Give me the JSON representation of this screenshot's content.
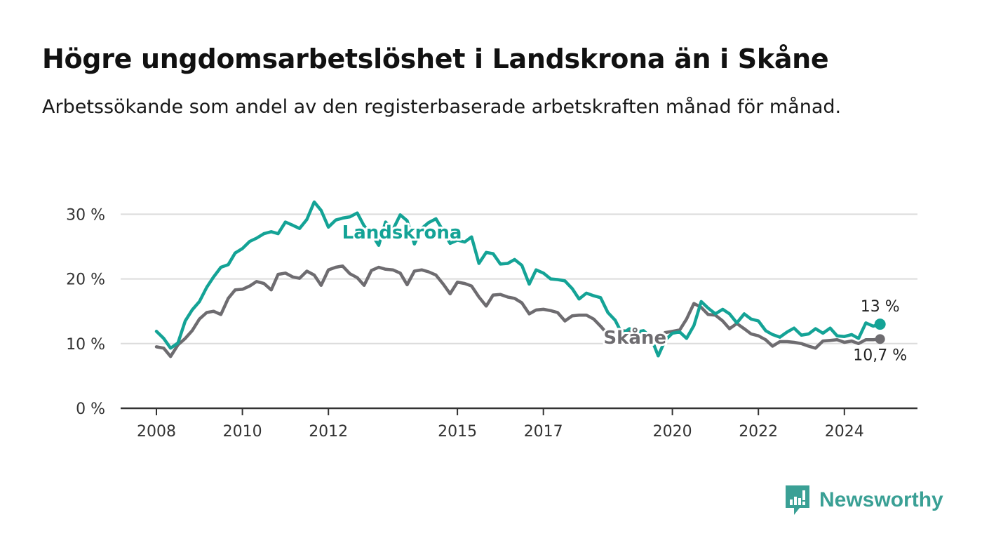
{
  "title": "Högre ungdomsarbetslöshet i Landskrona än i Skåne",
  "subtitle": "Arbetssökande som andel av den registerbaserade arbetskraften månad för månad.",
  "brand": {
    "name": "Newsworthy",
    "icon": "bar-chart-speech-bubble-icon",
    "color": "#3aa095"
  },
  "chart_data": {
    "type": "line",
    "title": "Högre ungdomsarbetslöshet i Landskrona än i Skåne",
    "subtitle": "Arbetssökande som andel av den registerbaserade arbetskraften månad för månad.",
    "xlabel": "",
    "ylabel": "",
    "xlim": [
      2008.0,
      2025.5
    ],
    "ylim": [
      0,
      30
    ],
    "y_ticks": [
      0,
      10,
      20,
      30
    ],
    "y_tick_labels": [
      "0 %",
      "10 %",
      "20 %",
      "30 %"
    ],
    "x_ticks": [
      2008,
      2010,
      2012,
      2015,
      2017,
      2020,
      2022,
      2024
    ],
    "x_tick_labels": [
      "2008",
      "2010",
      "2012",
      "2015",
      "2017",
      "2020",
      "2022",
      "2024"
    ],
    "grid": true,
    "series": [
      {
        "name": "Landskrona",
        "color": "#14a396",
        "end_label": "13 %",
        "points": [
          [
            2008.0,
            11.9
          ],
          [
            2008.17,
            10.8
          ],
          [
            2008.33,
            9.3
          ],
          [
            2008.5,
            10.1
          ],
          [
            2008.67,
            13.5
          ],
          [
            2008.83,
            15.2
          ],
          [
            2009.0,
            16.5
          ],
          [
            2009.17,
            18.7
          ],
          [
            2009.33,
            20.3
          ],
          [
            2009.5,
            21.8
          ],
          [
            2009.67,
            22.2
          ],
          [
            2009.83,
            24.0
          ],
          [
            2010.0,
            24.7
          ],
          [
            2010.17,
            25.8
          ],
          [
            2010.33,
            26.3
          ],
          [
            2010.5,
            27.0
          ],
          [
            2010.67,
            27.3
          ],
          [
            2010.83,
            27.0
          ],
          [
            2011.0,
            28.8
          ],
          [
            2011.17,
            28.3
          ],
          [
            2011.33,
            27.8
          ],
          [
            2011.5,
            29.2
          ],
          [
            2011.67,
            31.9
          ],
          [
            2011.83,
            30.6
          ],
          [
            2012.0,
            28.0
          ],
          [
            2012.17,
            29.1
          ],
          [
            2012.33,
            29.4
          ],
          [
            2012.5,
            29.6
          ],
          [
            2012.67,
            30.2
          ],
          [
            2012.83,
            28.2
          ],
          [
            2013.0,
            27.0
          ],
          [
            2013.17,
            25.2
          ],
          [
            2013.33,
            28.8
          ],
          [
            2013.5,
            27.6
          ],
          [
            2013.67,
            29.9
          ],
          [
            2013.83,
            29.0
          ],
          [
            2014.0,
            25.4
          ],
          [
            2014.17,
            27.8
          ],
          [
            2014.33,
            28.7
          ],
          [
            2014.5,
            29.3
          ],
          [
            2014.67,
            27.4
          ],
          [
            2014.83,
            25.5
          ],
          [
            2015.0,
            26.0
          ],
          [
            2015.17,
            25.7
          ],
          [
            2015.33,
            26.5
          ],
          [
            2015.5,
            22.4
          ],
          [
            2015.67,
            24.1
          ],
          [
            2015.83,
            23.9
          ],
          [
            2016.0,
            22.3
          ],
          [
            2016.17,
            22.4
          ],
          [
            2016.33,
            23.0
          ],
          [
            2016.5,
            22.1
          ],
          [
            2016.67,
            19.2
          ],
          [
            2016.83,
            21.4
          ],
          [
            2017.0,
            20.9
          ],
          [
            2017.17,
            20.0
          ],
          [
            2017.33,
            19.9
          ],
          [
            2017.5,
            19.7
          ],
          [
            2017.67,
            18.5
          ],
          [
            2017.83,
            16.9
          ],
          [
            2018.0,
            17.8
          ],
          [
            2018.17,
            17.4
          ],
          [
            2018.33,
            17.1
          ],
          [
            2018.5,
            14.8
          ],
          [
            2018.67,
            13.6
          ],
          [
            2018.83,
            11.5
          ],
          [
            2019.0,
            12.3
          ],
          [
            2019.17,
            11.8
          ],
          [
            2019.33,
            12.0
          ],
          [
            2019.5,
            11.0
          ],
          [
            2019.67,
            8.1
          ],
          [
            2019.83,
            10.5
          ],
          [
            2020.0,
            11.6
          ],
          [
            2020.17,
            11.8
          ],
          [
            2020.33,
            10.8
          ],
          [
            2020.5,
            12.8
          ],
          [
            2020.67,
            16.5
          ],
          [
            2020.83,
            15.5
          ],
          [
            2021.0,
            14.6
          ],
          [
            2021.17,
            15.3
          ],
          [
            2021.33,
            14.6
          ],
          [
            2021.5,
            13.2
          ],
          [
            2021.67,
            14.6
          ],
          [
            2021.83,
            13.8
          ],
          [
            2022.0,
            13.5
          ],
          [
            2022.17,
            12.0
          ],
          [
            2022.33,
            11.4
          ],
          [
            2022.5,
            11.0
          ],
          [
            2022.67,
            11.8
          ],
          [
            2022.83,
            12.4
          ],
          [
            2023.0,
            11.3
          ],
          [
            2023.17,
            11.5
          ],
          [
            2023.33,
            12.3
          ],
          [
            2023.5,
            11.6
          ],
          [
            2023.67,
            12.4
          ],
          [
            2023.83,
            11.2
          ],
          [
            2024.0,
            11.1
          ],
          [
            2024.17,
            11.4
          ],
          [
            2024.33,
            10.8
          ],
          [
            2024.5,
            13.2
          ],
          [
            2024.67,
            12.7
          ],
          [
            2024.83,
            13.0
          ]
        ]
      },
      {
        "name": "Skåne",
        "color": "#6e6c70",
        "end_label": "10,7 %",
        "points": [
          [
            2008.0,
            9.5
          ],
          [
            2008.17,
            9.3
          ],
          [
            2008.33,
            8.0
          ],
          [
            2008.5,
            9.8
          ],
          [
            2008.67,
            10.8
          ],
          [
            2008.83,
            12.0
          ],
          [
            2009.0,
            13.8
          ],
          [
            2009.17,
            14.8
          ],
          [
            2009.33,
            15.0
          ],
          [
            2009.5,
            14.5
          ],
          [
            2009.67,
            17.0
          ],
          [
            2009.83,
            18.3
          ],
          [
            2010.0,
            18.4
          ],
          [
            2010.17,
            18.9
          ],
          [
            2010.33,
            19.6
          ],
          [
            2010.5,
            19.3
          ],
          [
            2010.67,
            18.3
          ],
          [
            2010.83,
            20.7
          ],
          [
            2011.0,
            20.9
          ],
          [
            2011.17,
            20.3
          ],
          [
            2011.33,
            20.1
          ],
          [
            2011.5,
            21.2
          ],
          [
            2011.67,
            20.6
          ],
          [
            2011.83,
            19.0
          ],
          [
            2012.0,
            21.4
          ],
          [
            2012.17,
            21.8
          ],
          [
            2012.33,
            22.0
          ],
          [
            2012.5,
            20.8
          ],
          [
            2012.67,
            20.2
          ],
          [
            2012.83,
            19.0
          ],
          [
            2013.0,
            21.3
          ],
          [
            2013.17,
            21.8
          ],
          [
            2013.33,
            21.5
          ],
          [
            2013.5,
            21.4
          ],
          [
            2013.67,
            20.9
          ],
          [
            2013.83,
            19.1
          ],
          [
            2014.0,
            21.2
          ],
          [
            2014.17,
            21.4
          ],
          [
            2014.33,
            21.1
          ],
          [
            2014.5,
            20.6
          ],
          [
            2014.67,
            19.2
          ],
          [
            2014.83,
            17.7
          ],
          [
            2015.0,
            19.5
          ],
          [
            2015.17,
            19.3
          ],
          [
            2015.33,
            18.9
          ],
          [
            2015.5,
            17.2
          ],
          [
            2015.67,
            15.8
          ],
          [
            2015.83,
            17.5
          ],
          [
            2016.0,
            17.6
          ],
          [
            2016.17,
            17.2
          ],
          [
            2016.33,
            17.0
          ],
          [
            2016.5,
            16.3
          ],
          [
            2016.67,
            14.6
          ],
          [
            2016.83,
            15.2
          ],
          [
            2017.0,
            15.3
          ],
          [
            2017.17,
            15.1
          ],
          [
            2017.33,
            14.8
          ],
          [
            2017.5,
            13.5
          ],
          [
            2017.67,
            14.3
          ],
          [
            2017.83,
            14.4
          ],
          [
            2018.0,
            14.4
          ],
          [
            2018.17,
            13.8
          ],
          [
            2018.33,
            12.7
          ],
          [
            2018.5,
            11.4
          ],
          [
            2018.67,
            11.8
          ],
          [
            2018.83,
            12.0
          ],
          [
            2019.0,
            11.9
          ],
          [
            2019.17,
            11.4
          ],
          [
            2019.33,
            11.6
          ],
          [
            2019.5,
            11.4
          ],
          [
            2019.67,
            10.8
          ],
          [
            2019.83,
            11.7
          ],
          [
            2020.0,
            11.9
          ],
          [
            2020.17,
            12.1
          ],
          [
            2020.33,
            13.8
          ],
          [
            2020.5,
            16.2
          ],
          [
            2020.67,
            15.6
          ],
          [
            2020.83,
            14.5
          ],
          [
            2021.0,
            14.4
          ],
          [
            2021.17,
            13.5
          ],
          [
            2021.33,
            12.3
          ],
          [
            2021.5,
            13.1
          ],
          [
            2021.67,
            12.3
          ],
          [
            2021.83,
            11.5
          ],
          [
            2022.0,
            11.2
          ],
          [
            2022.17,
            10.6
          ],
          [
            2022.33,
            9.6
          ],
          [
            2022.5,
            10.3
          ],
          [
            2022.67,
            10.3
          ],
          [
            2022.83,
            10.2
          ],
          [
            2023.0,
            10.0
          ],
          [
            2023.17,
            9.6
          ],
          [
            2023.33,
            9.3
          ],
          [
            2023.5,
            10.4
          ],
          [
            2023.67,
            10.5
          ],
          [
            2023.83,
            10.6
          ],
          [
            2024.0,
            10.2
          ],
          [
            2024.17,
            10.4
          ],
          [
            2024.33,
            10.0
          ],
          [
            2024.5,
            10.6
          ],
          [
            2024.67,
            10.6
          ],
          [
            2024.83,
            10.7
          ]
        ]
      }
    ]
  }
}
